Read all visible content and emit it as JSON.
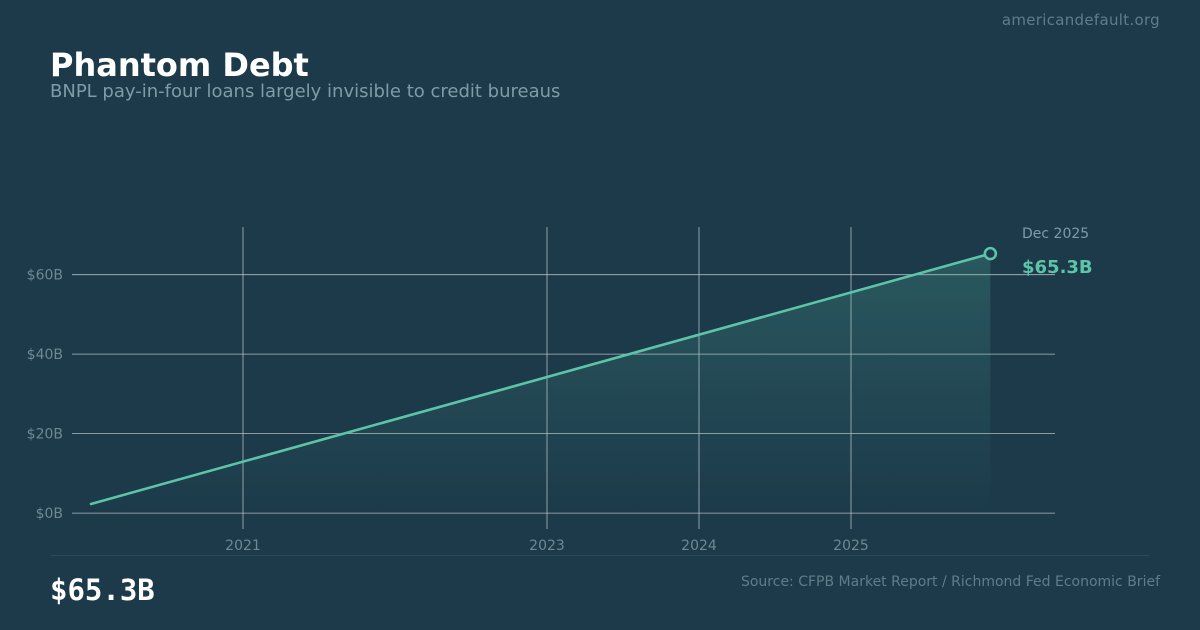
{
  "header": {
    "site": "americandefault.org",
    "title": "Phantom Debt",
    "subtitle": "BNPL pay-in-four loans largely invisible to credit bureaus"
  },
  "footer": {
    "big_value": "$65.3B",
    "source": "Source: CFPB Market Report / Richmond Fed Economic Brief"
  },
  "colors": {
    "background": "#1c3a4a",
    "line": "#5cc4a8",
    "grid": "#c8d2d6",
    "tick_text": "#6f8893"
  },
  "chart_data": {
    "type": "area",
    "x": [
      "2020-01",
      "2025-12"
    ],
    "values": [
      2.3,
      65.3
    ],
    "xticks": [
      "2021",
      "2023",
      "2024",
      "2025"
    ],
    "yticks": [
      "$0B",
      "$20B",
      "$40B",
      "$60B"
    ],
    "ylim": [
      -4,
      72
    ],
    "grid": true,
    "annotation": {
      "date": "Dec 2025",
      "value": "$65.3B"
    }
  }
}
